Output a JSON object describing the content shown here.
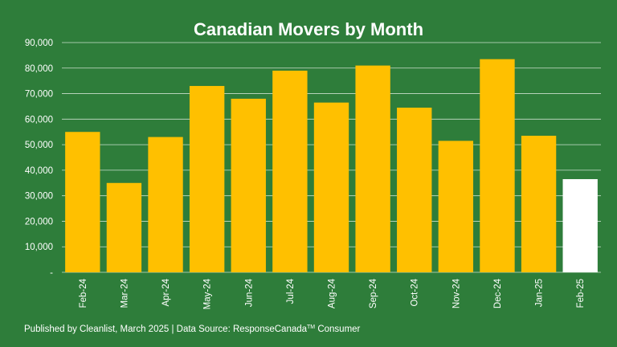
{
  "chart_data": {
    "type": "bar",
    "title": "Canadian Movers by Month",
    "xlabel": "",
    "ylabel": "",
    "categories": [
      "Feb-24",
      "Mar-24",
      "Apr-24",
      "May-24",
      "Jun-24",
      "Jul-24",
      "Aug-24",
      "Sep-24",
      "Oct-24",
      "Nov-24",
      "Dec-24",
      "Jan-25",
      "Feb-25"
    ],
    "values": [
      55000,
      35000,
      53000,
      73000,
      68000,
      79000,
      66500,
      81000,
      64500,
      51500,
      83500,
      53500,
      36500
    ],
    "ylim": [
      0,
      90000
    ],
    "yticks": [
      "-",
      "10,000",
      "20,000",
      "30,000",
      "40,000",
      "50,000",
      "60,000",
      "70,000",
      "80,000",
      "90,000"
    ],
    "grid": true,
    "legend": "none",
    "colors": {
      "bar": "#ffc000",
      "highlight_bar": "#ffffff",
      "background": "#2e7d3a",
      "grid": "#ffffff",
      "text": "#ffffff"
    },
    "highlight_category": "Feb-25"
  },
  "footer": {
    "text_before": "Published by Cleanlist, March 2025 | Data Source: ResponseCanada",
    "tm": "TM",
    "text_after": " Consumer"
  }
}
